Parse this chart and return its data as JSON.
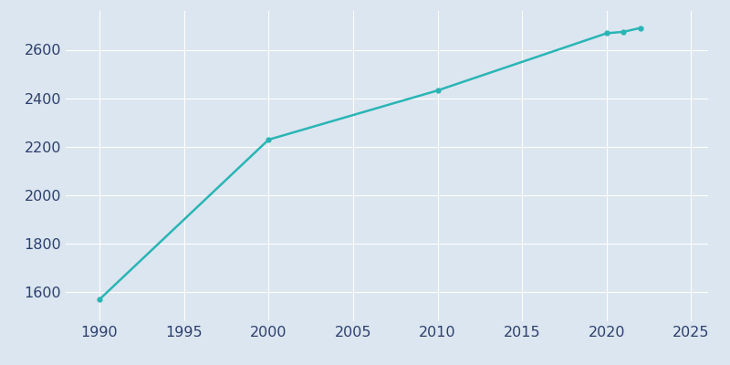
{
  "years": [
    1990,
    2000,
    2010,
    2020,
    2021,
    2022
  ],
  "population": [
    1570,
    2229,
    2432,
    2668,
    2674,
    2690
  ],
  "line_color": "#2ab5b5",
  "marker": "o",
  "marker_size": 3.5,
  "background_color": "#dce6f0",
  "figure_background": "#dce6f0",
  "grid_color": "#ffffff",
  "xlim": [
    1988,
    2026
  ],
  "ylim": [
    1480,
    2760
  ],
  "xticks": [
    1990,
    1995,
    2000,
    2005,
    2010,
    2015,
    2020,
    2025
  ],
  "yticks": [
    1600,
    1800,
    2000,
    2200,
    2400,
    2600
  ],
  "tick_color": "#2d3f6e",
  "tick_fontsize": 11.5
}
